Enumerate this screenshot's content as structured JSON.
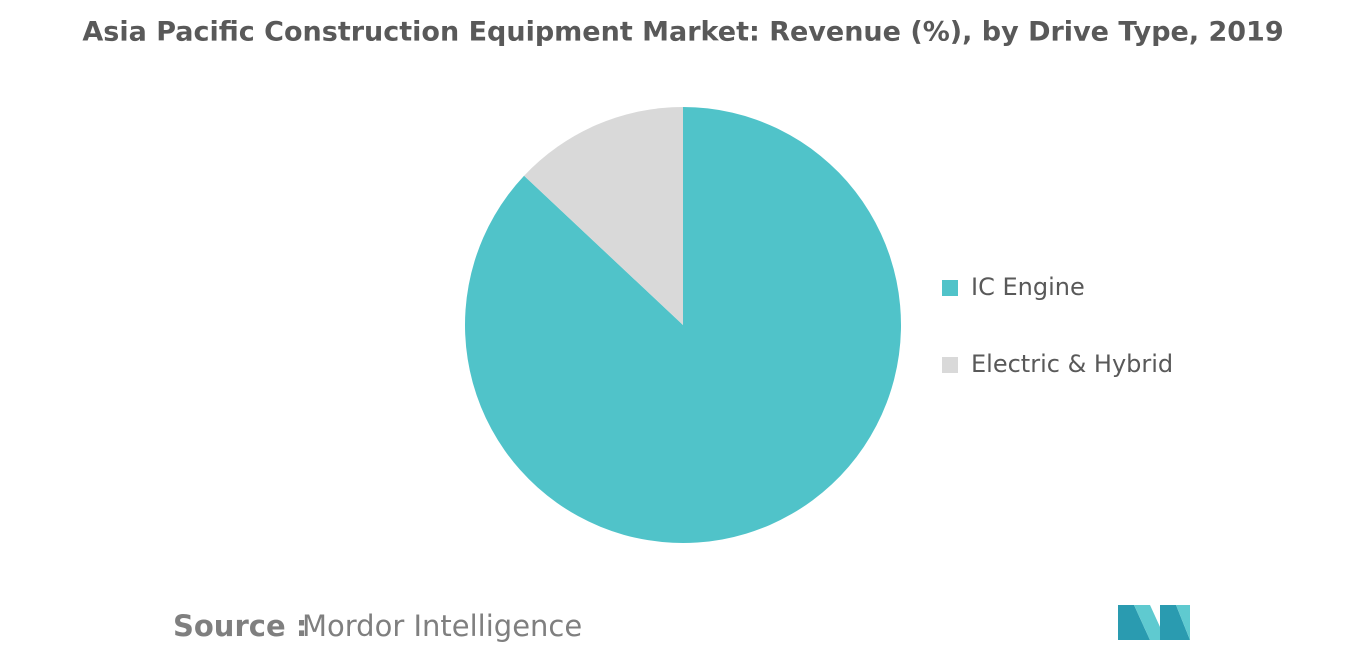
{
  "chart_data": {
    "type": "pie",
    "title": "Asia Pacific Construction Equipment Market: Revenue (%), by Drive Type, 2019",
    "categories": [
      "IC Engine",
      "Electric & Hybrid"
    ],
    "values": [
      87,
      13
    ],
    "colors": [
      "#50c3c9",
      "#d9d9d9"
    ],
    "legend": "right"
  },
  "source": {
    "label": "Source :",
    "name": "Mordor Intelligence"
  }
}
